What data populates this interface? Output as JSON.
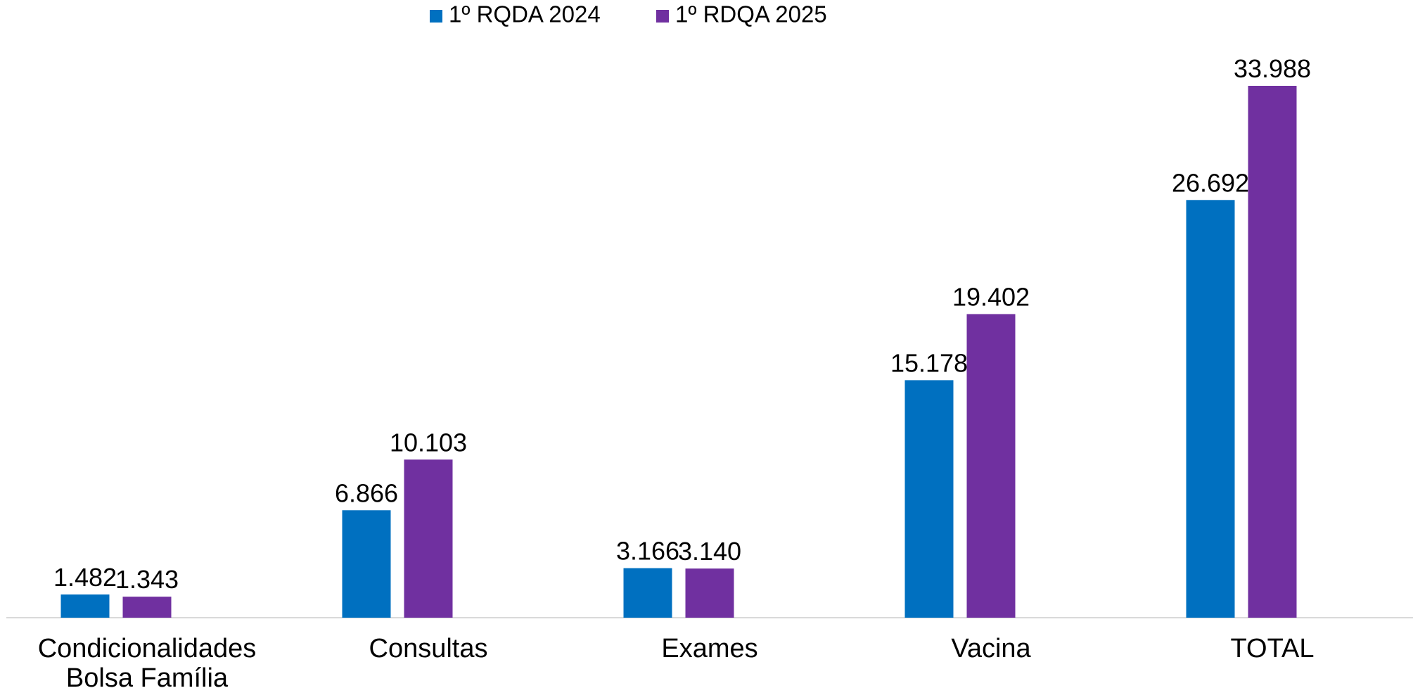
{
  "chart_data": {
    "type": "bar",
    "categories": [
      "Condicionalidades Bolsa Família",
      "Consultas",
      "Exames",
      "Vacina",
      "TOTAL"
    ],
    "series": [
      {
        "name": "1º RQDA 2024",
        "color": "#0070C0",
        "values": [
          1482,
          6866,
          3166,
          15178,
          26692
        ],
        "value_labels": [
          "1.482",
          "6.866",
          "3.166",
          "15.178",
          "26.692"
        ]
      },
      {
        "name": "1º RDQA 2025",
        "color": "#7030A0",
        "values": [
          1343,
          10103,
          3140,
          19402,
          33988
        ],
        "value_labels": [
          "1.343",
          "10.103",
          "3.140",
          "19.402",
          "33.988"
        ]
      }
    ],
    "legend": "top"
  }
}
